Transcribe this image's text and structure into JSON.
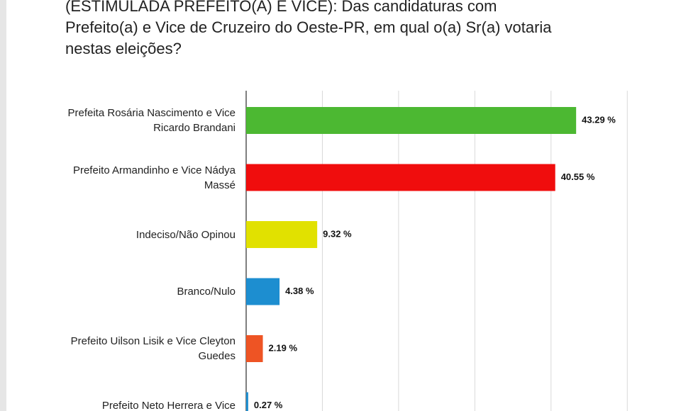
{
  "chart_data": {
    "type": "barh",
    "title": "(ESTIMULADA PREFEITO(A) E VICE): Das candidaturas com Prefeito(a) e Vice de Cruzeiro do Oeste-PR, em qual o(a) Sr(a) votaria nestas eleições?",
    "categories": [
      "Prefeita Rosária Nascimento e Vice Ricardo Brandani",
      "Prefeito Armandinho e Vice Nádya Massé",
      "Indeciso/Não Opinou",
      "Branco/Nulo",
      "Prefeito Uilson Lisik e Vice Cleyton Guedes",
      "Prefeito Neto Herrera e Vice"
    ],
    "values": [
      43.29,
      40.55,
      9.32,
      4.38,
      2.19,
      0.27
    ],
    "value_labels": [
      "43.29 %",
      "40.55 %",
      "9.32 %",
      "4.38 %",
      "2.19 %",
      "0.27 %"
    ],
    "colors": [
      "#4cb832",
      "#f00d0d",
      "#e1e100",
      "#1d8ed0",
      "#ee5424",
      "#1d8ed0"
    ],
    "xlim": [
      0,
      51
    ],
    "xticks": [
      0,
      10,
      20,
      30,
      40,
      50
    ],
    "grid": true
  }
}
